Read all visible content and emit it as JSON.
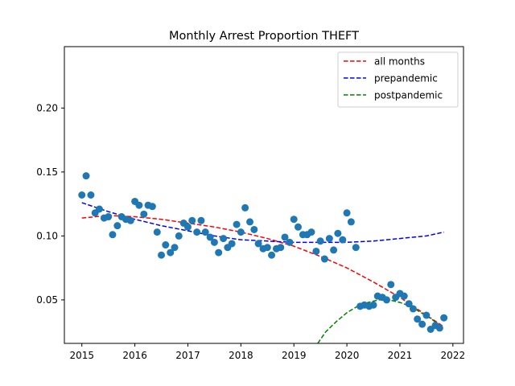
{
  "chart_data": {
    "type": "scatter",
    "title": "Monthly Arrest Proportion THEFT",
    "xlabel": "",
    "ylabel": "",
    "xlim": [
      2014.67,
      2022.2
    ],
    "ylim": [
      0.016,
      0.248
    ],
    "x_ticks": [
      2015,
      2016,
      2017,
      2018,
      2019,
      2020,
      2021,
      2022
    ],
    "y_ticks": [
      0.05,
      0.1,
      0.15,
      0.2
    ],
    "x_tick_labels": [
      "2015",
      "2016",
      "2017",
      "2018",
      "2019",
      "2020",
      "2021",
      "2022"
    ],
    "y_tick_labels": [
      "0.05",
      "0.10",
      "0.15",
      "0.20"
    ],
    "grid": false,
    "legend_position": "top-right",
    "points": {
      "color": "#1f77b4",
      "x": [
        2015.0,
        2015.08,
        2015.17,
        2015.25,
        2015.33,
        2015.42,
        2015.5,
        2015.58,
        2015.67,
        2015.75,
        2015.83,
        2015.92,
        2016.0,
        2016.08,
        2016.17,
        2016.25,
        2016.33,
        2016.42,
        2016.5,
        2016.58,
        2016.67,
        2016.75,
        2016.83,
        2016.92,
        2017.0,
        2017.08,
        2017.17,
        2017.25,
        2017.33,
        2017.42,
        2017.5,
        2017.58,
        2017.67,
        2017.75,
        2017.83,
        2017.92,
        2018.0,
        2018.08,
        2018.17,
        2018.25,
        2018.33,
        2018.42,
        2018.5,
        2018.58,
        2018.67,
        2018.75,
        2018.83,
        2018.92,
        2019.0,
        2019.08,
        2019.17,
        2019.25,
        2019.33,
        2019.42,
        2019.5,
        2019.58,
        2019.67,
        2019.75,
        2019.83,
        2019.92,
        2020.0,
        2020.08,
        2020.17,
        2020.25,
        2020.33,
        2020.42,
        2020.5,
        2020.58,
        2020.67,
        2020.75,
        2020.83,
        2020.92,
        2021.0,
        2021.08,
        2021.17,
        2021.25,
        2021.33,
        2021.42,
        2021.5,
        2021.58,
        2021.67,
        2021.75,
        2021.83
      ],
      "y": [
        0.132,
        0.147,
        0.132,
        0.118,
        0.121,
        0.114,
        0.115,
        0.101,
        0.108,
        0.115,
        0.113,
        0.112,
        0.127,
        0.124,
        0.117,
        0.124,
        0.123,
        0.103,
        0.085,
        0.093,
        0.087,
        0.091,
        0.1,
        0.11,
        0.107,
        0.112,
        0.103,
        0.112,
        0.103,
        0.099,
        0.095,
        0.087,
        0.098,
        0.091,
        0.094,
        0.109,
        0.103,
        0.122,
        0.111,
        0.105,
        0.094,
        0.09,
        0.091,
        0.085,
        0.09,
        0.091,
        0.099,
        0.095,
        0.113,
        0.107,
        0.101,
        0.101,
        0.103,
        0.088,
        0.096,
        0.082,
        0.098,
        0.089,
        0.102,
        0.097,
        0.118,
        0.111,
        0.091,
        0.045,
        0.046,
        0.045,
        0.046,
        0.053,
        0.052,
        0.05,
        0.062,
        0.052,
        0.055,
        0.053,
        0.047,
        0.043,
        0.035,
        0.031,
        0.038,
        0.027,
        0.03,
        0.028,
        0.036
      ]
    },
    "series": [
      {
        "name": "all months",
        "color": "#ff0000",
        "style": "dashed",
        "x": [
          2015.0,
          2015.5,
          2016.0,
          2016.5,
          2017.0,
          2017.5,
          2018.0,
          2018.5,
          2019.0,
          2019.5,
          2020.0,
          2020.5,
          2021.0,
          2021.5,
          2021.83
        ],
        "y": [
          0.114,
          0.116,
          0.115,
          0.113,
          0.11,
          0.107,
          0.103,
          0.098,
          0.092,
          0.084,
          0.075,
          0.064,
          0.052,
          0.038,
          0.029
        ]
      },
      {
        "name": "prepandemic",
        "color": "#0000ff",
        "style": "dashed",
        "x": [
          2015.0,
          2015.5,
          2016.0,
          2016.5,
          2017.0,
          2017.5,
          2018.0,
          2018.5,
          2019.0,
          2019.5,
          2020.0,
          2020.5,
          2021.0,
          2021.5,
          2021.83
        ],
        "y": [
          0.126,
          0.119,
          0.113,
          0.108,
          0.104,
          0.1,
          0.097,
          0.096,
          0.095,
          0.095,
          0.095,
          0.096,
          0.098,
          0.1,
          0.103
        ]
      },
      {
        "name": "postpandemic",
        "color": "#008000",
        "style": "dashed",
        "x": [
          2019.45,
          2019.6,
          2019.8,
          2020.0,
          2020.2,
          2020.4,
          2020.6,
          2020.8,
          2021.0,
          2021.2,
          2021.4,
          2021.6,
          2021.8
        ],
        "y": [
          0.016,
          0.025,
          0.033,
          0.04,
          0.045,
          0.048,
          0.05,
          0.05,
          0.048,
          0.045,
          0.04,
          0.035,
          0.028
        ]
      }
    ]
  }
}
